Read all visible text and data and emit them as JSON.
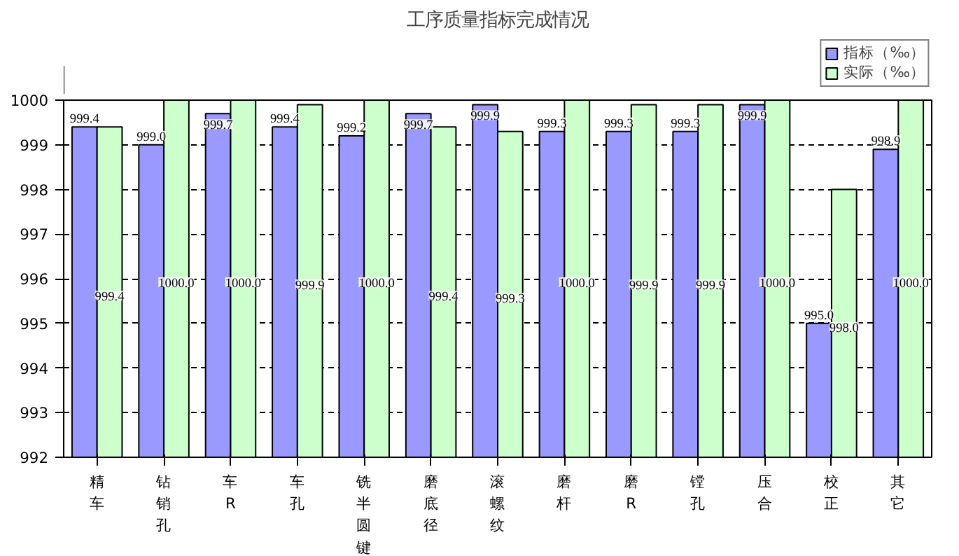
{
  "chart_data": {
    "type": "bar",
    "title": "工序质量指标完成情况",
    "categories": [
      "精车",
      "钻销孔",
      "车R",
      "车孔",
      "铣半圆键",
      "磨底径",
      "滚螺纹",
      "磨杆",
      "磨R",
      "镗孔",
      "压合",
      "校正",
      "其它"
    ],
    "series": [
      {
        "name": "指标（‰）",
        "color": "#9999ff",
        "values": [
          999.4,
          999.0,
          999.7,
          999.4,
          999.2,
          999.7,
          999.9,
          999.3,
          999.3,
          999.3,
          999.9,
          995.0,
          998.9
        ],
        "value_labels": [
          "999.4",
          "999.0",
          "999.7",
          "999.4",
          "999.2",
          "999.7",
          "999.9",
          "999.3",
          "999.3",
          "999.3",
          "999.9",
          "995.0",
          "998.9"
        ]
      },
      {
        "name": "实际（‰）",
        "color": "#ccffcc",
        "values": [
          999.4,
          1000.0,
          1000.0,
          999.9,
          1000.0,
          999.4,
          999.3,
          1000.0,
          999.9,
          999.9,
          1000.0,
          998.0,
          1000.0
        ],
        "value_labels": [
          "999.4",
          "1000.0",
          "1000.0",
          "999.9",
          "1000.0",
          "999.4",
          "999.3",
          "1000.0",
          "999.9",
          "999.9",
          "1000.0",
          "998.0",
          "1000.0"
        ]
      }
    ],
    "ylim": [
      992,
      1000
    ],
    "yticks": [
      992,
      993,
      994,
      995,
      996,
      997,
      998,
      999,
      1000
    ],
    "grid": "y",
    "legend": "top right"
  }
}
